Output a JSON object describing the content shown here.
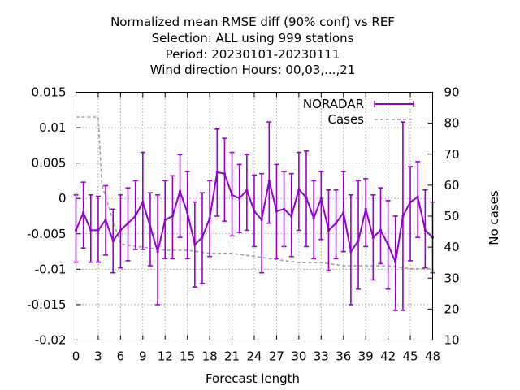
{
  "chart_data": {
    "type": "line",
    "title_lines": [
      "Normalized mean RMSE diff (90% conf) vs REF",
      "Selection: ALL using   999 stations",
      "Period: 20230101-20230111",
      "Wind direction   Hours:  00,03,...,21"
    ],
    "xlabel": "Forecast length",
    "ylabel": "",
    "y2label": "No cases",
    "xlim": [
      0,
      48
    ],
    "ylim": [
      -0.02,
      0.015
    ],
    "y2lim": [
      10,
      90
    ],
    "grid": true,
    "legend_position": "top-right",
    "x_ticks": [
      "0",
      "3",
      "6",
      "9",
      "12",
      "15",
      "18",
      "21",
      "24",
      "27",
      "30",
      "33",
      "36",
      "39",
      "42",
      "45",
      "48"
    ],
    "y_ticks": [
      "0.015",
      "0.01",
      "0.005",
      "0",
      "-0.005",
      "-0.01",
      "-0.015",
      "-0.02"
    ],
    "y2_ticks": [
      "90",
      "80",
      "70",
      "60",
      "50",
      "40",
      "30",
      "20",
      "10"
    ],
    "series": [
      {
        "name": "NORADAR",
        "color": "#9400d3",
        "axis": "y",
        "style": "line-errorbars",
        "x": [
          0,
          1,
          2,
          3,
          4,
          5,
          6,
          7,
          8,
          9,
          10,
          11,
          12,
          13,
          14,
          15,
          16,
          17,
          18,
          19,
          20,
          21,
          22,
          23,
          24,
          25,
          26,
          27,
          28,
          29,
          30,
          31,
          32,
          33,
          34,
          35,
          36,
          37,
          38,
          39,
          40,
          41,
          42,
          43,
          44,
          45,
          46,
          47,
          48
        ],
        "values": [
          -0.0045,
          -0.002,
          -0.0045,
          -0.0045,
          -0.003,
          -0.006,
          -0.0045,
          -0.0035,
          -0.0025,
          -0.0005,
          -0.004,
          -0.0075,
          -0.003,
          -0.0025,
          0.001,
          -0.002,
          -0.0065,
          -0.0055,
          -0.0028,
          0.0037,
          0.0035,
          0.0005,
          0,
          0.0012,
          -0.0018,
          -0.003,
          0.0025,
          -0.0018,
          -0.0015,
          -0.0025,
          0.0013,
          0.0001,
          -0.0028,
          0,
          -0.0045,
          -0.0035,
          -0.002,
          -0.0075,
          -0.006,
          -0.0015,
          -0.0055,
          -0.0045,
          -0.0065,
          -0.009,
          -0.0025,
          -0.0005,
          0.0002,
          -0.0045,
          -0.0055
        ],
        "err_low": [
          -0.009,
          -0.007,
          -0.009,
          -0.009,
          -0.008,
          -0.0105,
          -0.0098,
          -0.0088,
          -0.0072,
          -0.0072,
          -0.0095,
          -0.015,
          -0.0085,
          -0.0085,
          -0.0055,
          -0.0085,
          -0.0125,
          -0.012,
          -0.0082,
          -0.0025,
          -0.0032,
          -0.0053,
          -0.0048,
          -0.0045,
          -0.0068,
          -0.0105,
          -0.0035,
          -0.0085,
          -0.0068,
          -0.0082,
          -0.0045,
          -0.0068,
          -0.0085,
          -0.0058,
          -0.0102,
          -0.0085,
          -0.0075,
          -0.015,
          -0.0128,
          -0.0068,
          -0.0115,
          -0.0092,
          -0.0128,
          -0.0158,
          -0.0158,
          -0.0088,
          -0.0055,
          -0.0098,
          -0.0105
        ],
        "err_high": [
          0.0005,
          0.0023,
          0.0005,
          0.0003,
          0.0018,
          -0.0015,
          0.0005,
          0.0015,
          0.0025,
          0.0065,
          0.0008,
          0.0005,
          0.0025,
          0.0032,
          0.0062,
          0.0038,
          -0.0005,
          0.0008,
          0.0025,
          0.0098,
          0.0085,
          0.0065,
          0.0048,
          0.0062,
          0.0033,
          0.0035,
          0.0108,
          0.0048,
          0.0038,
          0.0035,
          0.0065,
          0.0067,
          0.0025,
          0.0038,
          0.0012,
          0.0012,
          0.0038,
          0.0005,
          0.0025,
          0.0028,
          0.0005,
          0.0015,
          -0.0003,
          -0.0025,
          0.0108,
          0.0045,
          0.0052,
          0.0012,
          -0.0005
        ]
      },
      {
        "name": "Cases",
        "color": "#a0a0a0",
        "axis": "y2",
        "style": "dashed-step",
        "x": [
          0,
          3,
          3.5,
          6,
          9,
          12,
          15,
          18,
          21,
          24,
          27,
          30,
          33,
          36,
          39,
          42,
          45,
          48
        ],
        "values": [
          82,
          82,
          60,
          41,
          40,
          39,
          39,
          38,
          38,
          37,
          36,
          35,
          35,
          34,
          34,
          34,
          33,
          33
        ]
      }
    ]
  }
}
